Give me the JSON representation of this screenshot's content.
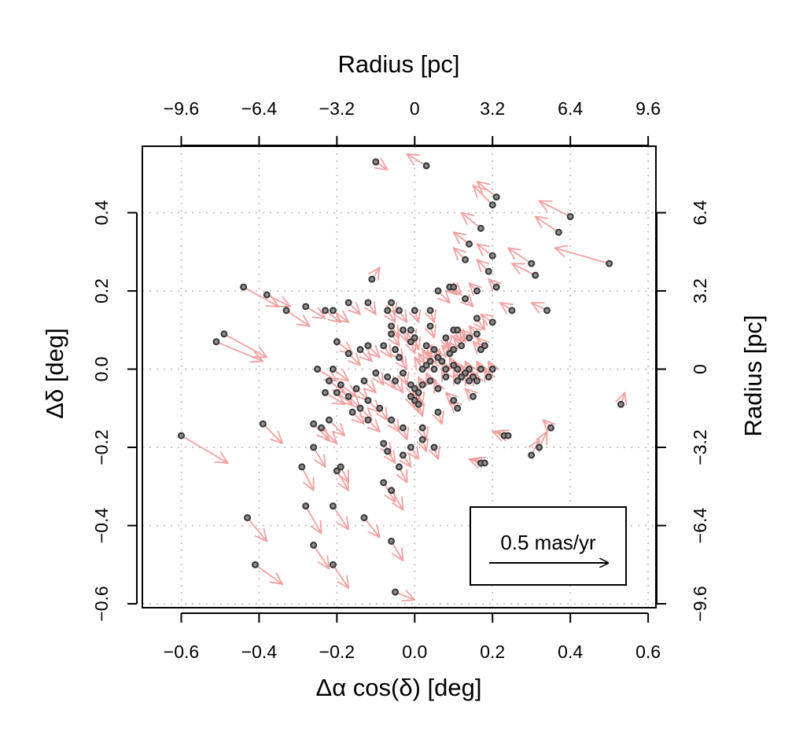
{
  "chart_data": {
    "type": "scatter",
    "title": "",
    "xlabel": "Δα cos(δ) [deg]",
    "ylabel": "Δδ [deg]",
    "x2label": "Radius [pc]",
    "y2label": "Radius [pc]",
    "xlim": [
      -0.7,
      0.62
    ],
    "ylim": [
      -0.61,
      0.57
    ],
    "xticks": [
      -0.6,
      -0.4,
      -0.2,
      0.0,
      0.2,
      0.4,
      0.6
    ],
    "xtick_labels": [
      "−0.6",
      "−0.4",
      "−0.2",
      "0.0",
      "0.2",
      "0.4",
      "0.6"
    ],
    "yticks": [
      -0.6,
      -0.4,
      -0.2,
      0.0,
      0.2,
      0.4
    ],
    "ytick_labels": [
      "−0.6",
      "−0.4",
      "−0.2",
      "0.0",
      "0.2",
      "0.4"
    ],
    "top_ticks": [
      -0.6,
      -0.4,
      -0.2,
      0.0,
      0.2,
      0.4,
      0.6
    ],
    "top_tick_labels": [
      "−9.6",
      "−6.4",
      "−3.2",
      "0",
      "3.2",
      "6.4",
      "9.6"
    ],
    "right_ticks": [
      -0.6,
      -0.4,
      -0.2,
      0.0,
      0.2,
      0.4
    ],
    "right_tick_labels": [
      "−9.6",
      "−6.4",
      "−3.2",
      "0",
      "3.2",
      "6.4"
    ],
    "grid": true,
    "legend": {
      "label": "0.5 mas/yr",
      "placement": "bottom-right"
    },
    "colors": {
      "points": "#3a3a3a",
      "arrows": "#f2a0a0",
      "grid": "#bbbbbb"
    },
    "points": [
      [
        0.03,
        0.52,
        -0.05,
        0.03
      ],
      [
        -0.1,
        0.53,
        0.03,
        -0.02
      ],
      [
        0.21,
        0.44,
        -0.05,
        0.04
      ],
      [
        0.2,
        0.42,
        -0.05,
        0.05
      ],
      [
        0.4,
        0.39,
        -0.08,
        0.04
      ],
      [
        0.37,
        0.35,
        -0.06,
        0.04
      ],
      [
        0.17,
        0.36,
        -0.05,
        0.04
      ],
      [
        0.14,
        0.32,
        -0.04,
        0.03
      ],
      [
        0.5,
        0.27,
        -0.14,
        0.04
      ],
      [
        0.3,
        0.27,
        -0.06,
        0.04
      ],
      [
        0.31,
        0.24,
        -0.06,
        0.03
      ],
      [
        0.2,
        0.29,
        -0.04,
        0.03
      ],
      [
        0.13,
        0.28,
        -0.03,
        0.03
      ],
      [
        0.19,
        0.25,
        -0.03,
        0.03
      ],
      [
        -0.11,
        0.23,
        0.02,
        0.03
      ],
      [
        -0.44,
        0.21,
        0.09,
        -0.05
      ],
      [
        -0.38,
        0.19,
        0.06,
        -0.03
      ],
      [
        -0.17,
        0.17,
        0.03,
        -0.03
      ],
      [
        -0.12,
        0.17,
        0.02,
        -0.03
      ],
      [
        -0.28,
        0.16,
        0.05,
        -0.03
      ],
      [
        -0.33,
        0.15,
        0.06,
        -0.04
      ],
      [
        -0.23,
        0.15,
        0.04,
        -0.03
      ],
      [
        -0.21,
        0.15,
        0.04,
        -0.03
      ],
      [
        -0.06,
        0.17,
        0.01,
        -0.03
      ],
      [
        -0.07,
        0.15,
        0.02,
        -0.03
      ],
      [
        0.06,
        0.2,
        0.03,
        -0.03
      ],
      [
        0.09,
        0.21,
        0.02,
        -0.02
      ],
      [
        0.1,
        0.21,
        0.02,
        -0.02
      ],
      [
        0.13,
        0.18,
        0.02,
        -0.02
      ],
      [
        0.16,
        0.2,
        -0.02,
        0.02
      ],
      [
        0.21,
        0.21,
        -0.02,
        0.02
      ],
      [
        0.25,
        0.15,
        -0.03,
        0.02
      ],
      [
        0.34,
        0.15,
        -0.04,
        0.02
      ],
      [
        0.2,
        0.12,
        -0.03,
        0.02
      ],
      [
        0.16,
        0.13,
        0.02,
        -0.03
      ],
      [
        0.0,
        0.15,
        0.01,
        -0.03
      ],
      [
        -0.04,
        0.15,
        0.02,
        -0.03
      ],
      [
        -0.06,
        0.11,
        0.02,
        -0.03
      ],
      [
        0.04,
        0.15,
        0.01,
        -0.03
      ],
      [
        0.04,
        0.11,
        0.01,
        -0.03
      ],
      [
        -0.01,
        0.1,
        0.01,
        -0.03
      ],
      [
        -0.03,
        0.1,
        0.01,
        -0.03
      ],
      [
        -0.06,
        0.09,
        0.02,
        -0.03
      ],
      [
        -0.51,
        0.07,
        0.12,
        -0.05
      ],
      [
        -0.49,
        0.09,
        0.11,
        -0.06
      ],
      [
        -0.2,
        0.07,
        0.04,
        -0.03
      ],
      [
        -0.17,
        0.04,
        0.03,
        -0.03
      ],
      [
        -0.14,
        0.05,
        0.03,
        -0.03
      ],
      [
        -0.12,
        0.06,
        0.03,
        -0.03
      ],
      [
        -0.08,
        0.06,
        0.02,
        -0.03
      ],
      [
        -0.05,
        0.05,
        0.02,
        -0.03
      ],
      [
        -0.04,
        0.03,
        0.02,
        -0.03
      ],
      [
        -0.01,
        0.07,
        0.01,
        -0.03
      ],
      [
        0.0,
        0.08,
        0.01,
        -0.03
      ],
      [
        0.03,
        0.06,
        0.01,
        -0.03
      ],
      [
        0.05,
        0.05,
        0.01,
        -0.03
      ],
      [
        0.08,
        0.08,
        0.01,
        -0.03
      ],
      [
        0.1,
        0.1,
        0.02,
        -0.03
      ],
      [
        0.11,
        0.1,
        0.02,
        -0.03
      ],
      [
        0.14,
        0.08,
        -0.02,
        0.02
      ],
      [
        0.16,
        0.09,
        -0.02,
        0.02
      ],
      [
        0.18,
        0.06,
        -0.02,
        0.02
      ],
      [
        0.17,
        0.05,
        -0.02,
        0.02
      ],
      [
        0.12,
        0.06,
        -0.02,
        0.02
      ],
      [
        0.1,
        0.05,
        -0.02,
        0.02
      ],
      [
        0.09,
        0.04,
        -0.02,
        0.02
      ],
      [
        0.06,
        0.03,
        -0.02,
        0.03
      ],
      [
        0.04,
        0.02,
        -0.02,
        0.03
      ],
      [
        0.03,
        0.01,
        -0.02,
        0.03
      ],
      [
        0.02,
        0.0,
        -0.02,
        0.03
      ],
      [
        0.05,
        0.0,
        -0.01,
        0.03
      ],
      [
        0.07,
        0.02,
        -0.02,
        0.03
      ],
      [
        0.08,
        0.0,
        -0.01,
        0.02
      ],
      [
        0.1,
        0.01,
        -0.01,
        0.02
      ],
      [
        0.11,
        0.0,
        -0.01,
        0.02
      ],
      [
        0.12,
        -0.02,
        -0.01,
        0.02
      ],
      [
        0.13,
        -0.01,
        -0.01,
        0.02
      ],
      [
        0.14,
        -0.03,
        -0.01,
        0.02
      ],
      [
        0.15,
        -0.02,
        -0.01,
        0.02
      ],
      [
        0.16,
        -0.03,
        -0.01,
        0.02
      ],
      [
        0.17,
        0.0,
        -0.01,
        0.02
      ],
      [
        0.19,
        -0.02,
        -0.01,
        0.02
      ],
      [
        0.2,
        0.0,
        -0.01,
        0.02
      ],
      [
        0.14,
        0.0,
        -0.01,
        0.02
      ],
      [
        0.11,
        -0.03,
        -0.01,
        0.02
      ],
      [
        0.08,
        -0.02,
        -0.01,
        0.02
      ],
      [
        0.06,
        -0.05,
        -0.01,
        0.02
      ],
      [
        0.04,
        -0.03,
        -0.01,
        0.02
      ],
      [
        0.02,
        -0.04,
        -0.01,
        0.02
      ],
      [
        0.01,
        -0.06,
        0.01,
        -0.03
      ],
      [
        0.0,
        -0.05,
        0.01,
        -0.03
      ],
      [
        -0.01,
        -0.04,
        0.01,
        -0.03
      ],
      [
        -0.01,
        -0.07,
        0.01,
        -0.03
      ],
      [
        0.0,
        -0.08,
        0.01,
        -0.03
      ],
      [
        0.01,
        -0.09,
        0.01,
        -0.03
      ],
      [
        -0.03,
        -0.01,
        0.01,
        -0.03
      ],
      [
        -0.05,
        -0.03,
        0.02,
        -0.03
      ],
      [
        -0.07,
        -0.02,
        0.02,
        -0.03
      ],
      [
        -0.1,
        -0.01,
        0.02,
        -0.03
      ],
      [
        -0.13,
        -0.03,
        0.03,
        -0.03
      ],
      [
        -0.15,
        -0.05,
        0.03,
        -0.03
      ],
      [
        -0.19,
        -0.04,
        0.04,
        -0.03
      ],
      [
        -0.2,
        -0.06,
        0.04,
        -0.03
      ],
      [
        -0.22,
        -0.03,
        0.04,
        -0.03
      ],
      [
        -0.23,
        -0.06,
        0.05,
        -0.03
      ],
      [
        -0.25,
        0.0,
        0.05,
        -0.03
      ],
      [
        -0.21,
        0.0,
        0.04,
        -0.03
      ],
      [
        -0.17,
        -0.07,
        0.03,
        -0.03
      ],
      [
        -0.12,
        -0.08,
        0.03,
        -0.03
      ],
      [
        -0.09,
        -0.1,
        0.02,
        -0.03
      ],
      [
        -0.14,
        -0.1,
        0.03,
        -0.03
      ],
      [
        -0.06,
        -0.13,
        0.02,
        -0.03
      ],
      [
        -0.03,
        -0.15,
        0.01,
        -0.03
      ],
      [
        0.02,
        -0.15,
        0.01,
        -0.03
      ],
      [
        0.02,
        -0.18,
        0.01,
        -0.03
      ],
      [
        0.06,
        -0.11,
        0.01,
        -0.03
      ],
      [
        0.1,
        -0.08,
        -0.02,
        0.02
      ],
      [
        0.11,
        -0.1,
        -0.02,
        0.02
      ],
      [
        0.15,
        -0.07,
        -0.02,
        0.02
      ],
      [
        0.23,
        -0.17,
        -0.03,
        0.01
      ],
      [
        0.24,
        -0.17,
        -0.03,
        0.01
      ],
      [
        0.3,
        -0.22,
        0.02,
        0.04
      ],
      [
        0.32,
        -0.2,
        0.02,
        0.04
      ],
      [
        0.35,
        -0.15,
        -0.02,
        0.02
      ],
      [
        0.17,
        -0.24,
        -0.03,
        0.01
      ],
      [
        0.18,
        -0.24,
        -0.03,
        0.01
      ],
      [
        0.53,
        -0.09,
        0.01,
        0.03
      ],
      [
        0.05,
        -0.2,
        0.01,
        -0.03
      ],
      [
        -0.01,
        -0.2,
        0.02,
        -0.03
      ],
      [
        -0.03,
        -0.22,
        0.02,
        -0.03
      ],
      [
        -0.08,
        -0.19,
        0.02,
        -0.03
      ],
      [
        -0.07,
        -0.21,
        0.02,
        -0.03
      ],
      [
        -0.12,
        -0.13,
        0.03,
        -0.03
      ],
      [
        -0.16,
        -0.11,
        0.03,
        -0.03
      ],
      [
        -0.22,
        -0.13,
        0.04,
        -0.04
      ],
      [
        -0.26,
        -0.14,
        0.04,
        -0.04
      ],
      [
        -0.24,
        -0.15,
        0.04,
        -0.04
      ],
      [
        -0.39,
        -0.14,
        0.05,
        -0.05
      ],
      [
        -0.6,
        -0.17,
        0.12,
        -0.07
      ],
      [
        -0.26,
        -0.2,
        0.03,
        -0.05
      ],
      [
        -0.29,
        -0.25,
        0.03,
        -0.06
      ],
      [
        -0.2,
        -0.26,
        0.03,
        -0.05
      ],
      [
        -0.19,
        -0.25,
        0.02,
        -0.04
      ],
      [
        -0.04,
        -0.25,
        0.02,
        -0.04
      ],
      [
        -0.08,
        -0.29,
        0.03,
        -0.05
      ],
      [
        -0.06,
        -0.31,
        0.03,
        -0.05
      ],
      [
        -0.21,
        -0.35,
        0.04,
        -0.06
      ],
      [
        -0.28,
        -0.35,
        0.04,
        -0.07
      ],
      [
        -0.13,
        -0.38,
        0.04,
        -0.05
      ],
      [
        -0.43,
        -0.38,
        0.05,
        -0.06
      ],
      [
        -0.06,
        -0.44,
        0.03,
        -0.05
      ],
      [
        -0.26,
        -0.45,
        0.04,
        -0.06
      ],
      [
        -0.41,
        -0.5,
        0.07,
        -0.05
      ],
      [
        -0.21,
        -0.5,
        0.04,
        -0.06
      ],
      [
        -0.05,
        -0.57,
        0.05,
        -0.02
      ]
    ]
  }
}
